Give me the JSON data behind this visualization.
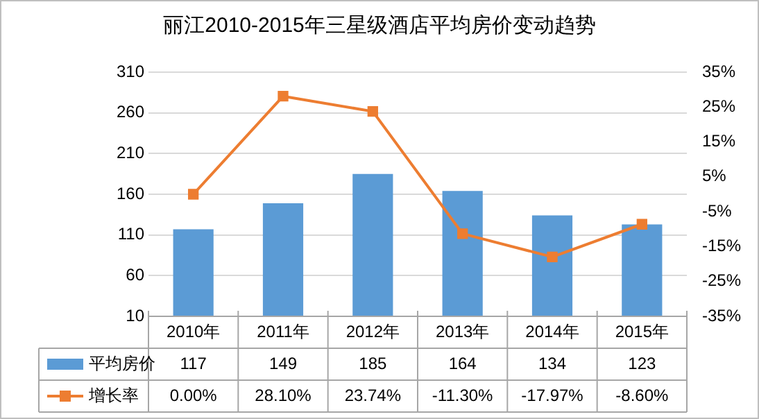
{
  "chart_data": {
    "type": "bar",
    "title": "丽江2010-2015年三星级酒店平均房价变动趋势",
    "categories": [
      "2010年",
      "2011年",
      "2012年",
      "2013年",
      "2014年",
      "2015年"
    ],
    "series": [
      {
        "name": "平均房价",
        "color": "#5b9bd5",
        "values": [
          117,
          149,
          185,
          164,
          134,
          123
        ],
        "value_labels": [
          "117",
          "149",
          "185",
          "164",
          "134",
          "123"
        ]
      },
      {
        "name": "增长率",
        "type": "line",
        "axis": "y2",
        "color": "#ed7d31",
        "marker": "square",
        "values": [
          0.0,
          28.1,
          23.74,
          -11.3,
          -17.97,
          -8.6
        ],
        "value_labels": [
          "0.00%",
          "28.10%",
          "23.74%",
          "-11.30%",
          "-17.97%",
          "-8.60%"
        ]
      }
    ],
    "ylim": [
      10,
      310
    ],
    "yticks": [
      10,
      60,
      110,
      160,
      210,
      260,
      310
    ],
    "y2lim": [
      -35,
      35
    ],
    "y2ticks": [
      {
        "value": -35,
        "label": "-35%"
      },
      {
        "value": -25,
        "label": "-25%"
      },
      {
        "value": -15,
        "label": "-15%"
      },
      {
        "value": -5,
        "label": "-5%"
      },
      {
        "value": 5,
        "label": "5%"
      },
      {
        "value": 15,
        "label": "15%"
      },
      {
        "value": 25,
        "label": "25%"
      },
      {
        "value": 35,
        "label": "35%"
      }
    ],
    "grid": "y",
    "legend": "bottom"
  }
}
